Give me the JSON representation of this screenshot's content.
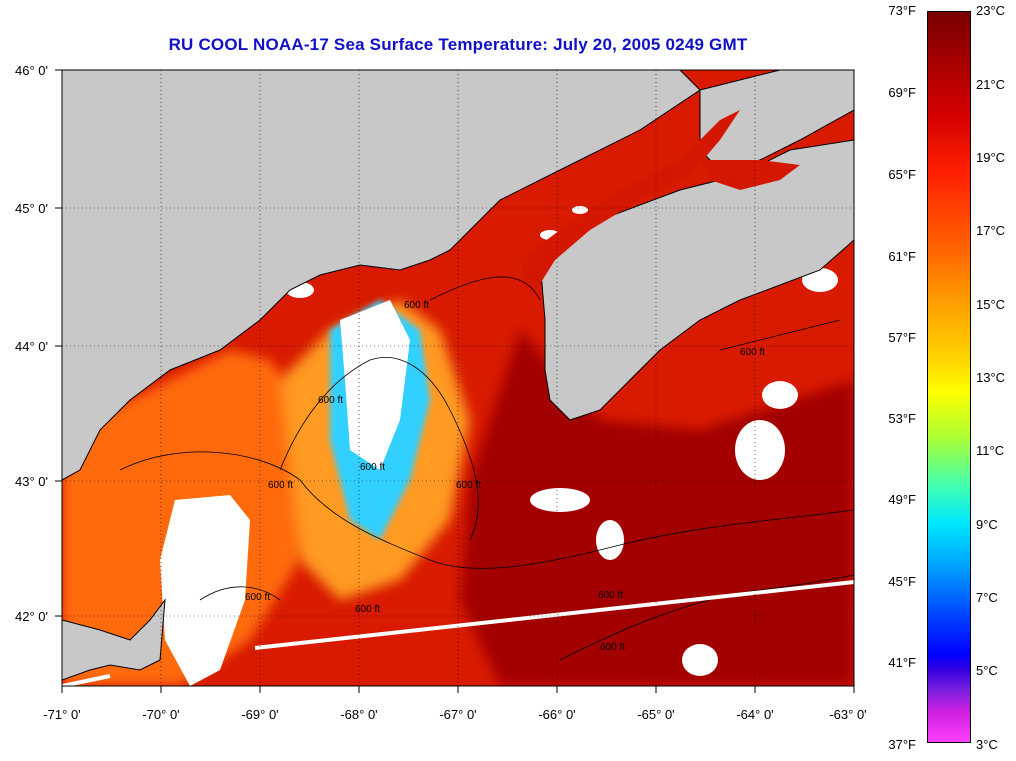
{
  "title": "RU COOL  NOAA-17  Sea Surface Temperature:  July 20, 2005 0249 GMT",
  "map": {
    "lon_ticks": [
      "-71° 0'",
      "-70° 0'",
      "-69° 0'",
      "-68° 0'",
      "-67° 0'",
      "-66° 0'",
      "-65° 0'",
      "-64° 0'",
      "-63° 0'"
    ],
    "lat_ticks": [
      "46° 0'",
      "45° 0'",
      "44° 0'",
      "43° 0'",
      "42° 0'"
    ],
    "contour_labels": [
      "600 ft",
      "600 ft",
      "600 ft",
      "600 ft",
      "600 ft",
      "600 ft",
      "600 ft",
      "600 ft",
      "600 ft",
      "600 ft"
    ],
    "colors": {
      "land": "#c8c8c8",
      "cloud": "#ffffff",
      "warm": "#cc1500",
      "hot": "#a00000",
      "mid": "#ff5a10",
      "cool": "#ff9a20"
    }
  },
  "colorbar": {
    "fahrenheit": [
      "73°F",
      "69°F",
      "65°F",
      "61°F",
      "57°F",
      "53°F",
      "49°F",
      "45°F",
      "41°F",
      "37°F"
    ],
    "celsius": [
      "23°C",
      "21°C",
      "19°C",
      "17°C",
      "15°C",
      "13°C",
      "11°C",
      "9°C",
      "7°C",
      "5°C",
      "3°C"
    ]
  }
}
